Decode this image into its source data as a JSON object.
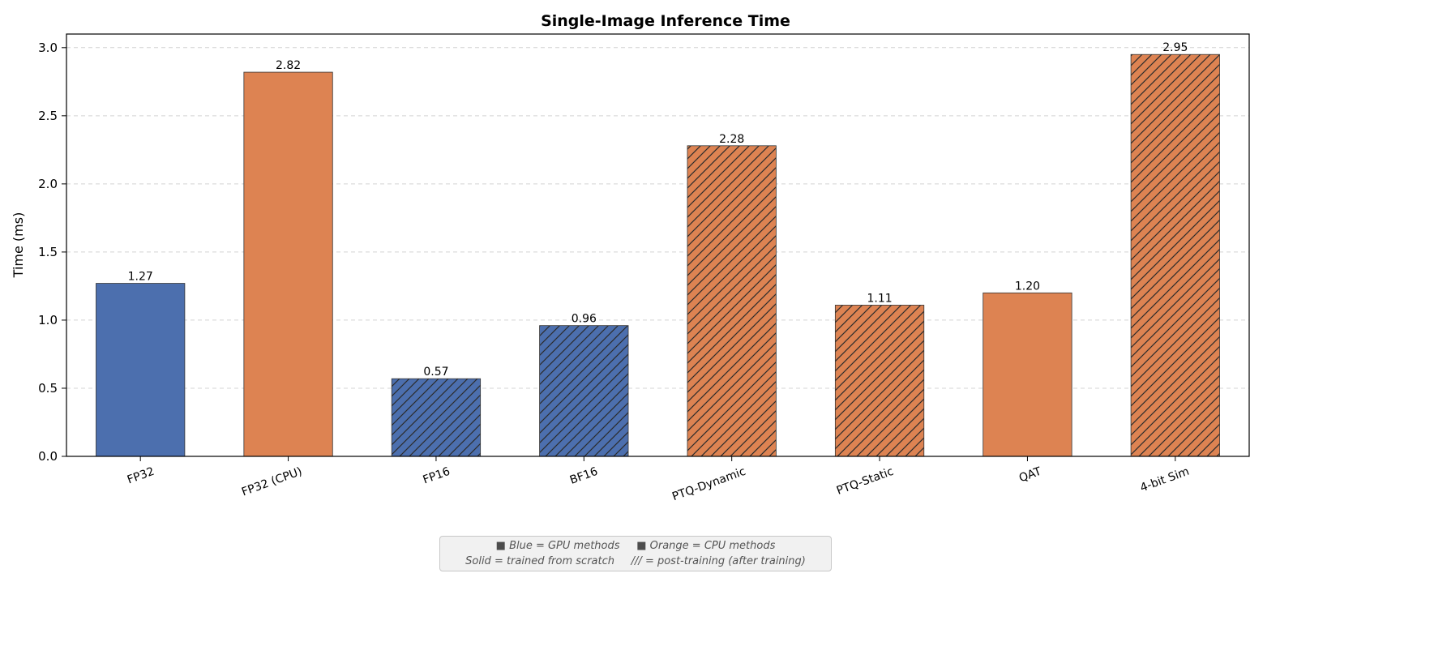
{
  "chart_data": {
    "type": "bar",
    "title": "Single-Image Inference Time",
    "xlabel": "",
    "ylabel": "Time (ms)",
    "ylim": [
      0,
      3.1
    ],
    "yticks": [
      "0.0",
      "0.5",
      "1.0",
      "1.5",
      "2.0",
      "2.5",
      "3.0"
    ],
    "ytick_values": [
      0,
      0.5,
      1.0,
      1.5,
      2.0,
      2.5,
      3.0
    ],
    "grid": "horizontal dashed",
    "categories": [
      "FP32",
      "FP32 (CPU)",
      "FP16",
      "BF16",
      "PTQ-Dynamic",
      "PTQ-Static",
      "QAT",
      "4-bit Sim"
    ],
    "values": [
      1.27,
      2.82,
      0.57,
      0.96,
      2.28,
      1.11,
      1.2,
      2.95
    ],
    "labels": [
      "1.27",
      "2.82",
      "0.57",
      "0.96",
      "2.28",
      "1.11",
      "1.20",
      "2.95"
    ],
    "groups": [
      "GPU",
      "CPU",
      "GPU",
      "GPU",
      "CPU",
      "CPU",
      "CPU",
      "CPU"
    ],
    "hatched": [
      false,
      false,
      true,
      true,
      true,
      true,
      false,
      true
    ],
    "colors": {
      "GPU": "#4c6fae",
      "CPU": "#dd8352",
      "edge": "#333333",
      "hatch": "#2b2b2b",
      "grid": "#d4d4d4"
    }
  },
  "legend_note": {
    "line1_sq1": "■",
    "line1_part1": "Blue = GPU methods",
    "line1_sq2": "■",
    "line1_part2": "Orange = CPU methods",
    "line2_part1": "Solid = trained from scratch",
    "line2_part2": "/// = post-training (after training)"
  }
}
